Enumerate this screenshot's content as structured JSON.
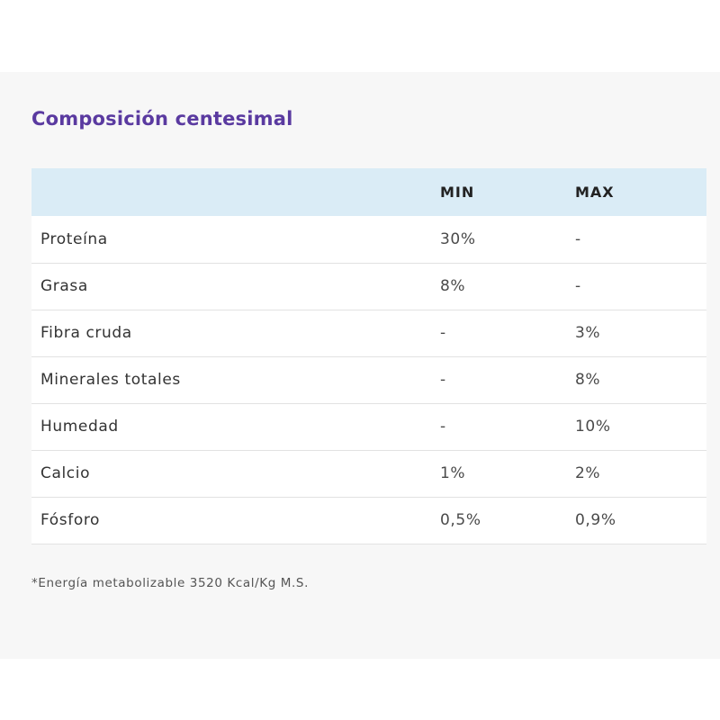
{
  "title": "Composición centesimal",
  "table": {
    "headers": [
      "",
      "MIN",
      "MAX"
    ],
    "rows": [
      {
        "name": "Proteína",
        "min": "30%",
        "max": "-"
      },
      {
        "name": "Grasa",
        "min": "8%",
        "max": "-"
      },
      {
        "name": "Fibra cruda",
        "min": "-",
        "max": "3%"
      },
      {
        "name": "Minerales totales",
        "min": "-",
        "max": "8%"
      },
      {
        "name": "Humedad",
        "min": "-",
        "max": "10%"
      },
      {
        "name": "Calcio",
        "min": "1%",
        "max": "2%"
      },
      {
        "name": "Fósforo",
        "min": "0,5%",
        "max": "0,9%"
      }
    ]
  },
  "footnote": "*Energía metabolizable 3520 Kcal/Kg M.S.",
  "colors": {
    "title": "#5a3aa0",
    "header_bg": "#daecf6",
    "panel_bg": "#f7f7f7"
  }
}
